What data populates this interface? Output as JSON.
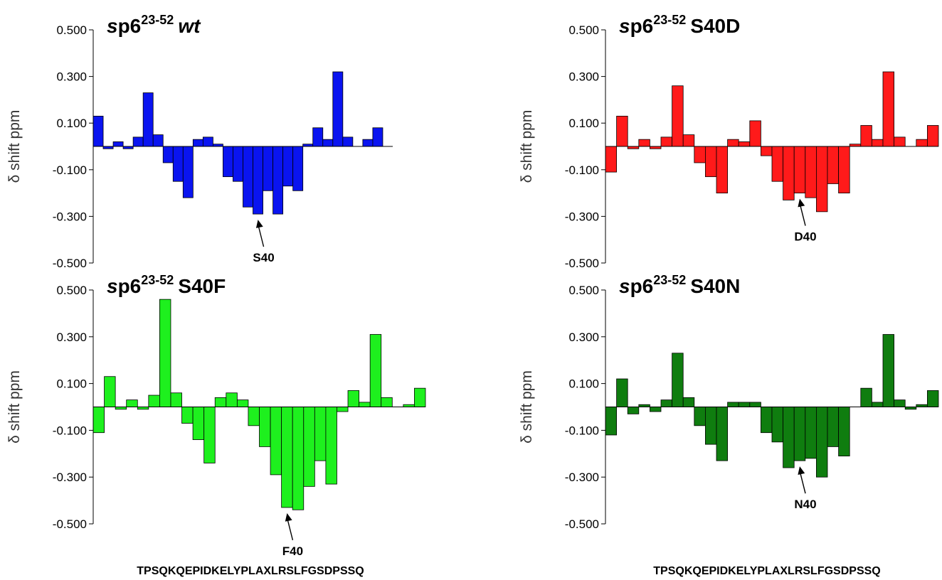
{
  "sequence": "TPSQKQEPIDKELYPLAXLRSLFGSDPSSQ",
  "chart_data": [
    {
      "type": "bar",
      "title": {
        "prefix_italic": "s",
        "main": "p6",
        "superscript": "23-52",
        "suffix": "wt",
        "suffix_italic": true
      },
      "ylabel": "δ shift ppm",
      "ylim": [
        -0.5,
        0.5
      ],
      "yticks": [
        "0.500",
        "0.300",
        "0.100",
        "-0.100",
        "-0.300",
        "-0.500"
      ],
      "color": "#0a14f0",
      "values": [
        0.13,
        -0.01,
        0.02,
        -0.01,
        0.04,
        0.23,
        0.05,
        -0.07,
        -0.15,
        -0.22,
        0.03,
        0.04,
        0.01,
        -0.13,
        -0.15,
        -0.26,
        -0.29,
        -0.19,
        -0.29,
        -0.17,
        -0.19,
        0.01,
        0.08,
        0.03,
        0.32,
        0.04,
        0.0,
        0.03,
        0.08,
        0.0
      ],
      "annotation": {
        "label": "S40",
        "index": 16
      }
    },
    {
      "type": "bar",
      "title": {
        "prefix_italic": "s",
        "main": "p6",
        "superscript": "23-52",
        "suffix": "S40D",
        "suffix_italic": false
      },
      "ylabel": "δ shift ppm",
      "ylim": [
        -0.5,
        0.5
      ],
      "yticks": [
        "0.500",
        "0.300",
        "0.100",
        "-0.100",
        "-0.300",
        "-0.500"
      ],
      "color": "#ff1a1a",
      "values": [
        -0.11,
        0.13,
        -0.01,
        0.03,
        -0.01,
        0.04,
        0.26,
        0.05,
        -0.07,
        -0.13,
        -0.2,
        0.03,
        0.02,
        0.11,
        -0.04,
        -0.15,
        -0.23,
        -0.2,
        -0.22,
        -0.28,
        -0.16,
        -0.2,
        0.01,
        0.09,
        0.03,
        0.32,
        0.04,
        0.0,
        0.03,
        0.09
      ],
      "annotation": {
        "label": "D40",
        "index": 17
      }
    },
    {
      "type": "bar",
      "title": {
        "prefix_italic": "s",
        "main": "p6",
        "superscript": "23-52",
        "suffix": "S40F",
        "suffix_italic": false
      },
      "ylabel": "δ shift ppm",
      "ylim": [
        -0.5,
        0.5
      ],
      "yticks": [
        "0.500",
        "0.300",
        "0.100",
        "-0.100",
        "-0.300",
        "-0.500"
      ],
      "color": "#1ef01e",
      "values": [
        -0.11,
        0.13,
        -0.01,
        0.03,
        -0.01,
        0.05,
        0.46,
        0.06,
        -0.07,
        -0.14,
        -0.24,
        0.04,
        0.06,
        0.03,
        -0.08,
        -0.17,
        -0.29,
        -0.43,
        -0.44,
        -0.34,
        -0.23,
        -0.33,
        -0.02,
        0.07,
        0.02,
        0.31,
        0.04,
        0.0,
        0.01,
        0.08
      ],
      "annotation": {
        "label": "F40",
        "index": 17
      }
    },
    {
      "type": "bar",
      "title": {
        "prefix_italic": "s",
        "main": "p6",
        "superscript": "23-52",
        "suffix": "S40N",
        "suffix_italic": false
      },
      "ylabel": "δ shift ppm",
      "ylim": [
        -0.5,
        0.5
      ],
      "yticks": [
        "0.500",
        "0.300",
        "0.100",
        "-0.100",
        "-0.300",
        "-0.500"
      ],
      "color": "#0f7d0f",
      "values": [
        -0.12,
        0.12,
        -0.03,
        0.01,
        -0.02,
        0.03,
        0.23,
        0.04,
        -0.08,
        -0.16,
        -0.23,
        0.02,
        0.02,
        0.02,
        -0.11,
        -0.15,
        -0.26,
        -0.23,
        -0.22,
        -0.3,
        -0.17,
        -0.21,
        0.0,
        0.08,
        0.02,
        0.31,
        0.03,
        -0.01,
        0.01,
        0.07
      ],
      "annotation": {
        "label": "N40",
        "index": 17
      }
    }
  ]
}
